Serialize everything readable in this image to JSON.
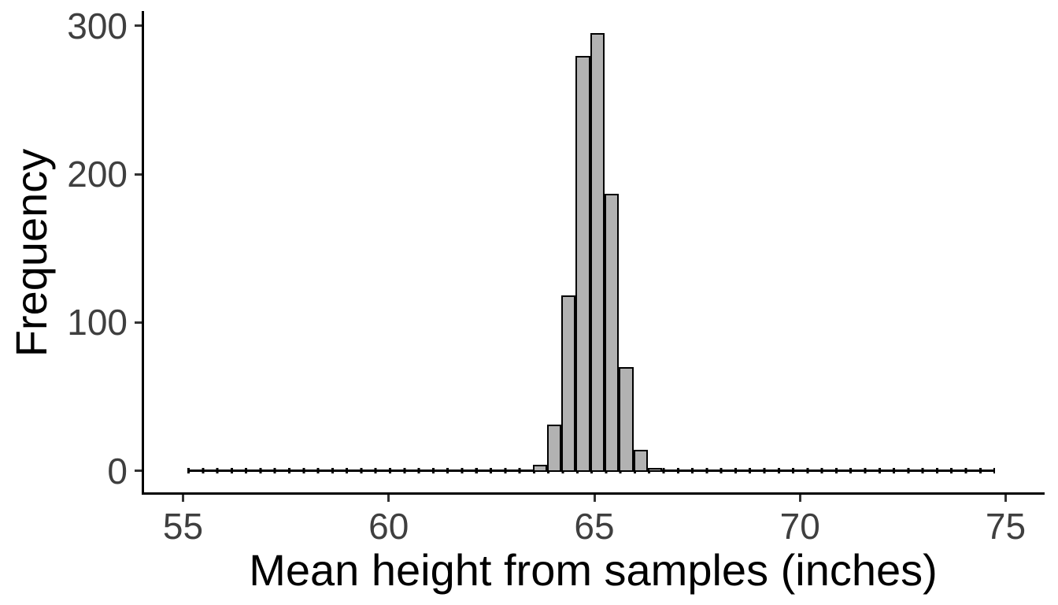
{
  "figure": {
    "background": "#ffffff",
    "bar_fill": "#b2b2b2",
    "bar_border": "#000000",
    "axis_color": "#000000",
    "tick_color": "#333333",
    "tick_label_color": "#3f3f3f",
    "title_color": "#000000"
  },
  "chart_data": {
    "type": "bar",
    "subtype": "histogram",
    "title": "",
    "xlabel": "Mean height from samples (inches)",
    "ylabel": "Frequency",
    "x_ticks": [
      55,
      60,
      65,
      70,
      75
    ],
    "y_ticks": [
      0,
      100,
      200,
      300
    ],
    "xlim": [
      54,
      76
    ],
    "ylim": [
      0,
      310
    ],
    "grid": false,
    "legend": false,
    "bin_width": 0.35,
    "bins": [
      {
        "x": 63.5,
        "count": 4
      },
      {
        "x": 63.85,
        "count": 31
      },
      {
        "x": 64.2,
        "count": 118
      },
      {
        "x": 64.55,
        "count": 280
      },
      {
        "x": 64.9,
        "count": 295
      },
      {
        "x": 65.25,
        "count": 187
      },
      {
        "x": 65.6,
        "count": 70
      },
      {
        "x": 65.95,
        "count": 14
      },
      {
        "x": 66.3,
        "count": 2
      }
    ],
    "zero_count_baseline": {
      "from": 55.1,
      "to": 74.75
    }
  }
}
